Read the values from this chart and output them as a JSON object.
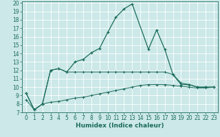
{
  "bg_color": "#cce8e8",
  "grid_color": "#ffffff",
  "line_color": "#1a6b5a",
  "xlabel": "Humidex (Indice chaleur)",
  "xlim": [
    -0.5,
    23.5
  ],
  "ylim": [
    7,
    20.2
  ],
  "yticks": [
    7,
    8,
    9,
    10,
    11,
    12,
    13,
    14,
    15,
    16,
    17,
    18,
    19,
    20
  ],
  "xticks": [
    0,
    1,
    2,
    3,
    4,
    5,
    6,
    7,
    8,
    9,
    10,
    11,
    12,
    13,
    14,
    15,
    16,
    17,
    18,
    19,
    20,
    21,
    22,
    23
  ],
  "series1_x": [
    0,
    1,
    2,
    3,
    4,
    5,
    6,
    7,
    8,
    9,
    10,
    11,
    12,
    13,
    15,
    16,
    17,
    18,
    19,
    20,
    21,
    22,
    23
  ],
  "series1_y": [
    9.3,
    7.3,
    8.0,
    12.0,
    12.2,
    11.8,
    13.0,
    13.3,
    14.1,
    14.6,
    16.5,
    18.3,
    19.3,
    19.9,
    14.5,
    16.8,
    14.5,
    11.5,
    10.3,
    10.3,
    10.0,
    10.0,
    10.0
  ],
  "series2_x": [
    0,
    1,
    2,
    3,
    4,
    5,
    6,
    7,
    8,
    9,
    10,
    11,
    12,
    13,
    14,
    15,
    16,
    17,
    18,
    19,
    20,
    21,
    22,
    23
  ],
  "series2_y": [
    9.3,
    7.3,
    8.0,
    12.0,
    12.2,
    11.8,
    11.8,
    11.8,
    11.8,
    11.8,
    11.8,
    11.8,
    11.8,
    11.8,
    11.8,
    11.8,
    11.8,
    11.8,
    11.5,
    10.5,
    10.3,
    10.0,
    10.0,
    10.0
  ],
  "series3_x": [
    0,
    1,
    2,
    3,
    4,
    5,
    6,
    7,
    8,
    9,
    10,
    11,
    12,
    13,
    14,
    15,
    16,
    17,
    18,
    19,
    20,
    21,
    22,
    23
  ],
  "series3_y": [
    8.5,
    7.3,
    8.0,
    8.2,
    8.3,
    8.5,
    8.7,
    8.8,
    9.0,
    9.2,
    9.4,
    9.6,
    9.8,
    10.0,
    10.2,
    10.3,
    10.3,
    10.3,
    10.2,
    10.1,
    10.0,
    9.9,
    9.9,
    10.0
  ],
  "xlabel_fontsize": 6.5,
  "tick_fontsize": 5.5
}
